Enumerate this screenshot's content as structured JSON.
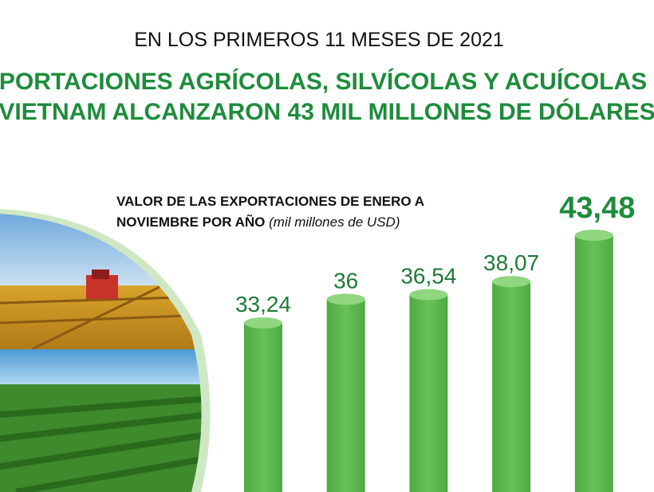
{
  "chart_data": {
    "type": "bar",
    "supertitle": "EN LOS PRIMEROS 11 MESES DE 2021",
    "title": [
      "EXPORTACIONES AGRÍCOLAS, SILVÍCOLAS Y ACUÍCOLAS DE",
      "VIETNAM ALCANZARON 43 MIL MILLONES DE DÓLARES"
    ],
    "subtitle": [
      "VALOR DE LAS EXPORTACIONES DE ENERO A",
      "NOVIEMBRE POR AÑO"
    ],
    "unit": "(mil millones de USD)",
    "categories": [
      null,
      null,
      null,
      null,
      null
    ],
    "values": [
      33.24,
      36,
      36.54,
      38.07,
      43.48
    ],
    "value_labels": [
      "33,24",
      "36",
      "36,54",
      "38,07",
      "43,48"
    ],
    "color": "#5dbb4f"
  }
}
